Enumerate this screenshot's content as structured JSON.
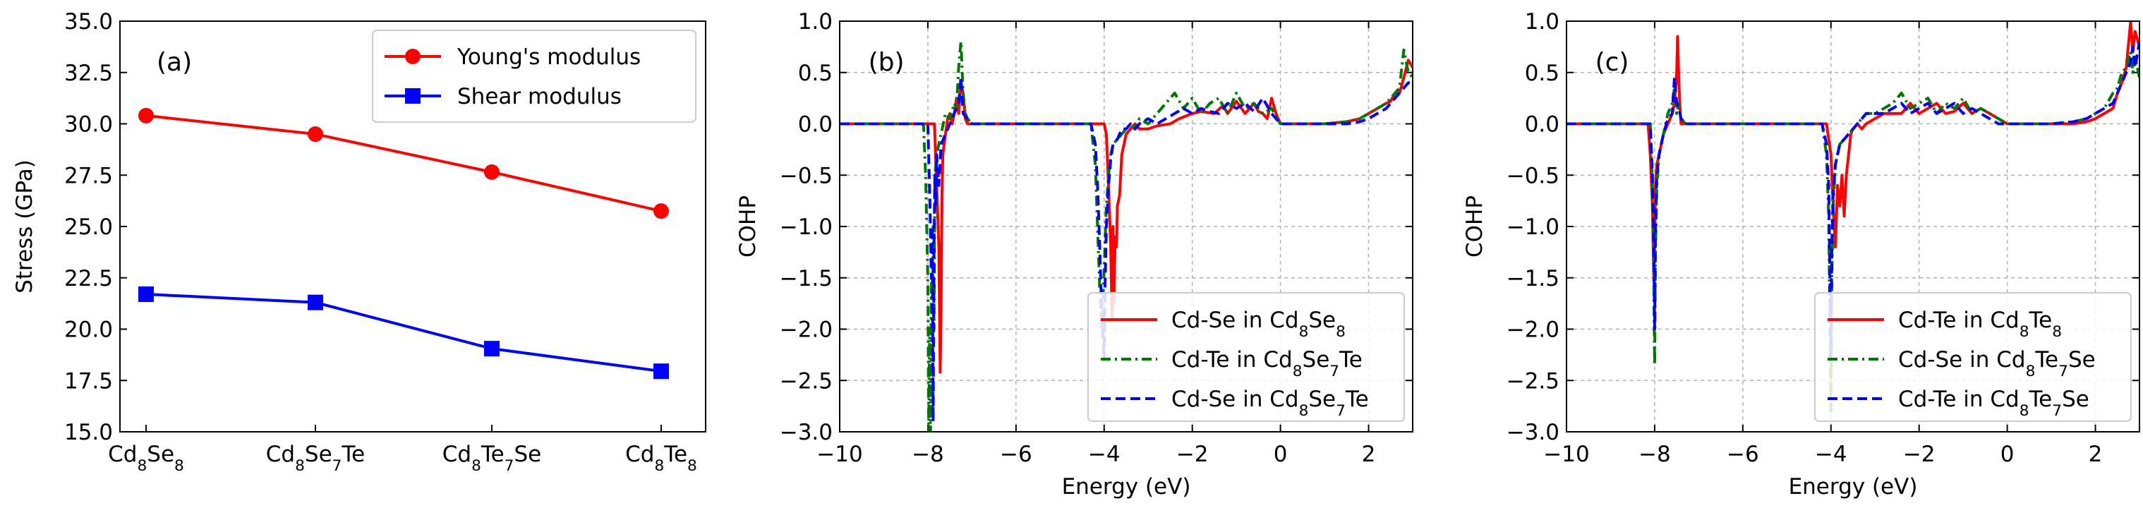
{
  "chart_data": [
    {
      "type": "line",
      "panel_label": "(a)",
      "ylabel": "Stress (GPa)",
      "xlabel": "",
      "ylim": [
        15.0,
        35.0
      ],
      "yticks": [
        15.0,
        17.5,
        20.0,
        22.5,
        25.0,
        27.5,
        30.0,
        32.5,
        35.0
      ],
      "ytick_labels": [
        "15.0",
        "17.5",
        "20.0",
        "22.5",
        "25.0",
        "27.5",
        "30.0",
        "32.5",
        "35.0"
      ],
      "categories": [
        {
          "base": "Cd",
          "s1": "8",
          "mid": "Se",
          "s2": "8",
          "tail": ""
        },
        {
          "base": "Cd",
          "s1": "8",
          "mid": "Se",
          "s2": "7",
          "tail": "Te"
        },
        {
          "base": "Cd",
          "s1": "8",
          "mid": "Te",
          "s2": "7",
          "tail": "Se"
        },
        {
          "base": "Cd",
          "s1": "8",
          "mid": "Te",
          "s2": "8",
          "tail": ""
        }
      ],
      "series": [
        {
          "name": "Young's modulus",
          "color": "#ff0000",
          "marker": "circle",
          "values": [
            30.4,
            29.5,
            27.65,
            25.75
          ]
        },
        {
          "name": "Shear modulus",
          "color": "#0000ff",
          "marker": "square",
          "values": [
            21.7,
            21.3,
            19.05,
            17.95
          ]
        }
      ],
      "legend_position": "top-right"
    },
    {
      "type": "line",
      "panel_label": "(b)",
      "xlabel": "Energy (eV)",
      "ylabel": "COHP",
      "xlim": [
        -10,
        3
      ],
      "ylim": [
        -3.0,
        1.0
      ],
      "xticks": [
        -10,
        -8,
        -6,
        -4,
        -2,
        0,
        2
      ],
      "xtick_labels": [
        "−10",
        "−8",
        "−6",
        "−4",
        "−2",
        "0",
        "2"
      ],
      "yticks": [
        -3.0,
        -2.5,
        -2.0,
        -1.5,
        -1.0,
        -0.5,
        0.0,
        0.5,
        1.0
      ],
      "ytick_labels": [
        "−3.0",
        "−2.5",
        "−2.0",
        "−1.5",
        "−1.0",
        "−0.5",
        "0.0",
        "0.5",
        "1.0"
      ],
      "grid": true,
      "legend_position": "bottom-right",
      "series": [
        {
          "name": {
            "pre": "Cd-Se in Cd",
            "s1": "8",
            "mid": "Se",
            "s2": "8",
            "tail": ""
          },
          "color": "#ff0000",
          "dash": "solid",
          "x": [
            -10,
            -7.9,
            -7.85,
            -7.8,
            -7.75,
            -7.72,
            -7.7,
            -7.68,
            -7.66,
            -7.6,
            -7.55,
            -7.5,
            -7.45,
            -7.4,
            -7.35,
            -7.3,
            -7.25,
            -7.2,
            -7.15,
            -7.1,
            -7.05,
            -7.0,
            -6.9,
            -4.2,
            -4.1,
            -4.0,
            -3.95,
            -3.9,
            -3.85,
            -3.82,
            -3.8,
            -3.78,
            -3.75,
            -3.72,
            -3.7,
            -3.65,
            -3.6,
            -3.55,
            -3.5,
            -3.4,
            -3.3,
            -3.2,
            -3.0,
            -2.8,
            -2.5,
            -2.3,
            -2.0,
            -1.8,
            -1.5,
            -1.3,
            -1.2,
            -1.0,
            -0.8,
            -0.6,
            -0.5,
            -0.4,
            -0.3,
            -0.2,
            -0.1,
            0.0,
            0.3,
            0.6,
            1.0,
            1.5,
            1.8,
            2.0,
            2.2,
            2.4,
            2.5,
            2.6,
            2.7,
            2.8,
            2.9,
            3.0
          ],
          "y": [
            0,
            0,
            0,
            -0.6,
            -1.2,
            -2.42,
            -1.8,
            -0.7,
            -0.3,
            -0.1,
            0.05,
            0.1,
            0.0,
            0.1,
            0.25,
            0.1,
            0.4,
            0.3,
            0.05,
            0.0,
            0.0,
            0.0,
            0.0,
            0.0,
            0.0,
            0.0,
            -0.1,
            -0.6,
            -1.2,
            -1.9,
            -1.0,
            -1.75,
            -1.1,
            -1.2,
            -0.8,
            -0.7,
            -0.3,
            -0.2,
            -0.1,
            -0.05,
            0.0,
            -0.05,
            -0.05,
            -0.02,
            0.0,
            0.05,
            0.1,
            0.12,
            0.1,
            0.18,
            0.1,
            0.22,
            0.1,
            0.2,
            0.12,
            0.1,
            0.05,
            0.25,
            0.1,
            0.0,
            0.0,
            0.0,
            0.0,
            0.02,
            0.05,
            0.1,
            0.15,
            0.2,
            0.22,
            0.3,
            0.3,
            0.45,
            0.62,
            0.55
          ]
        },
        {
          "name": {
            "pre": "Cd-Te in Cd",
            "s1": "8",
            "mid": "Se",
            "s2": "7",
            "tail": "Te"
          },
          "color": "#007700",
          "dash": "dashdot",
          "x": [
            -10,
            -8.1,
            -8.05,
            -8.0,
            -7.98,
            -7.96,
            -7.94,
            -7.92,
            -7.9,
            -7.88,
            -7.86,
            -7.84,
            -7.8,
            -7.75,
            -7.7,
            -7.6,
            -7.5,
            -7.4,
            -7.35,
            -7.3,
            -7.25,
            -7.2,
            -7.15,
            -7.1,
            -7.0,
            -6.9,
            -4.4,
            -4.3,
            -4.2,
            -4.15,
            -4.1,
            -4.05,
            -4.0,
            -3.95,
            -3.9,
            -3.85,
            -3.8,
            -3.7,
            -3.6,
            -3.5,
            -3.4,
            -3.3,
            -3.2,
            -3.0,
            -2.8,
            -2.6,
            -2.4,
            -2.2,
            -2.0,
            -1.8,
            -1.6,
            -1.4,
            -1.2,
            -1.0,
            -0.8,
            -0.6,
            -0.4,
            -0.2,
            0.0,
            0.3,
            0.6,
            1.0,
            1.5,
            1.8,
            2.0,
            2.2,
            2.4,
            2.5,
            2.6,
            2.7,
            2.8,
            2.9,
            3.0
          ],
          "y": [
            0,
            0,
            -0.5,
            -1.5,
            -3.0,
            -2.0,
            -3.0,
            -1.5,
            -2.8,
            -1.0,
            -2.0,
            -0.5,
            -0.3,
            -0.2,
            -0.1,
            0.1,
            0.05,
            0.2,
            0.15,
            0.55,
            0.8,
            0.3,
            0.1,
            0.05,
            0.0,
            0.0,
            0.0,
            0.0,
            -0.4,
            -1.0,
            -1.6,
            -2.0,
            -1.4,
            -0.8,
            -0.5,
            -0.3,
            -0.2,
            -0.15,
            -0.1,
            -0.05,
            0.0,
            -0.05,
            0.05,
            0.0,
            0.1,
            0.2,
            0.3,
            0.15,
            0.25,
            0.1,
            0.2,
            0.25,
            0.1,
            0.3,
            0.15,
            0.2,
            0.1,
            0.15,
            0.0,
            0.0,
            0.0,
            0.0,
            0.02,
            0.05,
            0.1,
            0.15,
            0.2,
            0.25,
            0.3,
            0.35,
            0.72,
            0.5,
            0.45
          ]
        },
        {
          "name": {
            "pre": "Cd-Se in Cd",
            "s1": "8",
            "mid": "Se",
            "s2": "7",
            "tail": "Te"
          },
          "color": "#0000ff",
          "dash": "dashed",
          "x": [
            -10,
            -8.0,
            -7.95,
            -7.92,
            -7.9,
            -7.88,
            -7.86,
            -7.84,
            -7.82,
            -7.8,
            -7.75,
            -7.7,
            -7.6,
            -7.5,
            -7.4,
            -7.3,
            -7.25,
            -7.2,
            -7.1,
            -7.0,
            -6.9,
            -4.3,
            -4.2,
            -4.15,
            -4.1,
            -4.05,
            -4.0,
            -3.98,
            -3.95,
            -3.9,
            -3.85,
            -3.8,
            -3.7,
            -3.6,
            -3.5,
            -3.4,
            -3.3,
            -3.2,
            -3.0,
            -2.8,
            -2.6,
            -2.4,
            -2.2,
            -2.0,
            -1.8,
            -1.6,
            -1.4,
            -1.2,
            -1.0,
            -0.8,
            -0.6,
            -0.4,
            -0.2,
            0.0,
            0.3,
            0.6,
            1.0,
            1.5,
            1.8,
            2.0,
            2.2,
            2.4,
            2.5,
            2.6,
            2.7,
            2.8,
            2.9,
            3.0
          ],
          "y": [
            0,
            0,
            -0.8,
            -1.5,
            -1.0,
            -2.9,
            -1.2,
            -0.5,
            -0.8,
            -0.3,
            -0.6,
            -0.2,
            -0.1,
            0.0,
            0.1,
            0.2,
            0.45,
            0.1,
            0.05,
            0.0,
            0.0,
            0.0,
            -0.2,
            -0.6,
            -1.2,
            -1.9,
            -2.3,
            -1.6,
            -1.0,
            -0.6,
            -0.35,
            -0.2,
            -0.15,
            -0.05,
            -0.05,
            0.0,
            -0.05,
            0.0,
            0.05,
            0.0,
            0.05,
            0.1,
            0.15,
            0.1,
            0.15,
            0.12,
            0.1,
            0.2,
            0.15,
            0.2,
            0.12,
            0.25,
            0.1,
            0.0,
            0.0,
            0.0,
            0.0,
            0.0,
            0.02,
            0.05,
            0.1,
            0.15,
            0.2,
            0.25,
            0.3,
            0.35,
            0.4,
            0.4
          ]
        }
      ]
    },
    {
      "type": "line",
      "panel_label": "(c)",
      "xlabel": "Energy (eV)",
      "ylabel": "COHP",
      "xlim": [
        -10,
        3
      ],
      "ylim": [
        -3.0,
        1.0
      ],
      "xticks": [
        -10,
        -8,
        -6,
        -4,
        -2,
        0,
        2
      ],
      "xtick_labels": [
        "−10",
        "−8",
        "−6",
        "−4",
        "−2",
        "0",
        "2"
      ],
      "yticks": [
        -3.0,
        -2.5,
        -2.0,
        -1.5,
        -1.0,
        -0.5,
        0.0,
        0.5,
        1.0
      ],
      "ytick_labels": [
        "−3.0",
        "−2.5",
        "−2.0",
        "−1.5",
        "−1.0",
        "−0.5",
        "0.0",
        "0.5",
        "1.0"
      ],
      "grid": true,
      "legend_position": "bottom-right",
      "series": [
        {
          "name": {
            "pre": "Cd-Te in Cd",
            "s1": "8",
            "mid": "Te",
            "s2": "8",
            "tail": ""
          },
          "color": "#ff0000",
          "dash": "solid",
          "x": [
            -10,
            -8.15,
            -8.1,
            -8.05,
            -8.02,
            -8.0,
            -7.98,
            -7.95,
            -7.9,
            -7.85,
            -7.8,
            -7.7,
            -7.6,
            -7.55,
            -7.5,
            -7.48,
            -7.45,
            -7.42,
            -7.4,
            -7.3,
            -7.2,
            -4.2,
            -4.1,
            -4.0,
            -3.95,
            -3.9,
            -3.85,
            -3.8,
            -3.75,
            -3.7,
            -3.65,
            -3.6,
            -3.55,
            -3.5,
            -3.4,
            -3.3,
            -3.2,
            -3.0,
            -2.8,
            -2.6,
            -2.4,
            -2.2,
            -2.0,
            -1.8,
            -1.6,
            -1.4,
            -1.2,
            -1.0,
            -0.8,
            -0.6,
            -0.4,
            -0.2,
            0.0,
            0.3,
            0.6,
            1.0,
            1.5,
            1.8,
            2.0,
            2.2,
            2.4,
            2.5,
            2.6,
            2.7,
            2.8,
            2.85,
            2.9,
            3.0
          ],
          "y": [
            0,
            0,
            -0.3,
            -0.8,
            -1.5,
            -1.2,
            -0.6,
            -0.4,
            -0.3,
            -0.2,
            -0.1,
            0.0,
            0.1,
            0.2,
            0.5,
            0.85,
            0.4,
            0.1,
            0.0,
            0.0,
            0.0,
            0.0,
            0.0,
            -0.3,
            -0.8,
            -1.2,
            -0.6,
            -0.8,
            -0.5,
            -0.9,
            -0.5,
            -0.3,
            -0.1,
            -0.05,
            0.0,
            -0.05,
            0.0,
            0.05,
            0.1,
            0.1,
            0.1,
            0.2,
            0.1,
            0.15,
            0.2,
            0.1,
            0.12,
            0.2,
            0.1,
            0.15,
            0.1,
            0.05,
            0.0,
            0.0,
            0.0,
            0.0,
            0.0,
            0.02,
            0.05,
            0.1,
            0.15,
            0.3,
            0.4,
            0.55,
            1.0,
            0.7,
            0.9,
            0.75
          ]
        },
        {
          "name": {
            "pre": "Cd-Se in Cd",
            "s1": "8",
            "mid": "Te",
            "s2": "7",
            "tail": "Se"
          },
          "color": "#007700",
          "dash": "dashdot",
          "x": [
            -10,
            -8.1,
            -8.05,
            -8.02,
            -8.0,
            -7.98,
            -7.95,
            -7.9,
            -7.85,
            -7.8,
            -7.7,
            -7.6,
            -7.55,
            -7.5,
            -7.45,
            -7.4,
            -7.3,
            -7.2,
            -4.2,
            -4.1,
            -4.05,
            -4.0,
            -3.98,
            -3.95,
            -3.9,
            -3.85,
            -3.8,
            -3.7,
            -3.6,
            -3.5,
            -3.4,
            -3.3,
            -3.2,
            -3.0,
            -2.8,
            -2.6,
            -2.4,
            -2.2,
            -2.0,
            -1.8,
            -1.6,
            -1.4,
            -1.2,
            -1.0,
            -0.8,
            -0.6,
            -0.4,
            -0.2,
            0.0,
            0.3,
            0.6,
            1.0,
            1.5,
            1.8,
            2.0,
            2.2,
            2.4,
            2.5,
            2.6,
            2.7,
            2.8,
            2.85,
            2.9,
            3.0
          ],
          "y": [
            0,
            0,
            -0.6,
            -1.5,
            -2.35,
            -1.2,
            -0.6,
            -0.3,
            -0.2,
            -0.1,
            0.1,
            0.2,
            0.35,
            0.1,
            0.2,
            0.05,
            0.0,
            0.0,
            0.0,
            -0.3,
            -0.9,
            -2.8,
            -1.5,
            -0.8,
            -0.4,
            -0.3,
            -0.2,
            -0.15,
            -0.1,
            -0.05,
            0.0,
            0.05,
            0.1,
            0.1,
            0.15,
            0.2,
            0.3,
            0.15,
            0.2,
            0.25,
            0.1,
            0.2,
            0.15,
            0.25,
            0.1,
            0.15,
            0.1,
            0.05,
            0.0,
            0.0,
            0.0,
            0.0,
            0.02,
            0.05,
            0.1,
            0.15,
            0.3,
            0.35,
            0.5,
            0.55,
            0.7,
            0.5,
            0.65,
            0.45
          ]
        },
        {
          "name": {
            "pre": "Cd-Te in Cd",
            "s1": "8",
            "mid": "Te",
            "s2": "7",
            "tail": "Se"
          },
          "color": "#0000ff",
          "dash": "dashed",
          "x": [
            -10,
            -8.1,
            -8.05,
            -8.02,
            -8.0,
            -7.98,
            -7.95,
            -7.9,
            -7.85,
            -7.8,
            -7.7,
            -7.6,
            -7.55,
            -7.5,
            -7.45,
            -7.4,
            -7.3,
            -7.2,
            -4.2,
            -4.1,
            -4.05,
            -4.0,
            -3.98,
            -3.95,
            -3.9,
            -3.85,
            -3.8,
            -3.7,
            -3.6,
            -3.5,
            -3.4,
            -3.3,
            -3.2,
            -3.0,
            -2.8,
            -2.6,
            -2.4,
            -2.2,
            -2.0,
            -1.8,
            -1.6,
            -1.4,
            -1.2,
            -1.0,
            -0.8,
            -0.6,
            -0.4,
            -0.2,
            0.0,
            0.3,
            0.6,
            1.0,
            1.5,
            1.8,
            2.0,
            2.2,
            2.4,
            2.5,
            2.6,
            2.7,
            2.8,
            2.85,
            2.9,
            3.0
          ],
          "y": [
            0,
            0,
            -0.5,
            -1.2,
            -2.0,
            -1.0,
            -0.5,
            -0.3,
            -0.2,
            -0.1,
            0.05,
            0.1,
            0.45,
            0.2,
            0.15,
            0.05,
            0.0,
            0.0,
            0.0,
            -0.2,
            -0.6,
            -2.3,
            -1.2,
            -0.7,
            -0.4,
            -0.3,
            -0.2,
            -0.15,
            -0.1,
            -0.05,
            0.0,
            0.05,
            0.1,
            0.1,
            0.1,
            0.15,
            0.2,
            0.1,
            0.15,
            0.2,
            0.1,
            0.15,
            0.2,
            0.1,
            0.15,
            0.1,
            0.05,
            0.0,
            0.0,
            0.0,
            0.0,
            0.0,
            0.02,
            0.05,
            0.1,
            0.15,
            0.2,
            0.3,
            0.4,
            0.5,
            0.6,
            0.75,
            0.55,
            0.8
          ]
        }
      ]
    }
  ]
}
